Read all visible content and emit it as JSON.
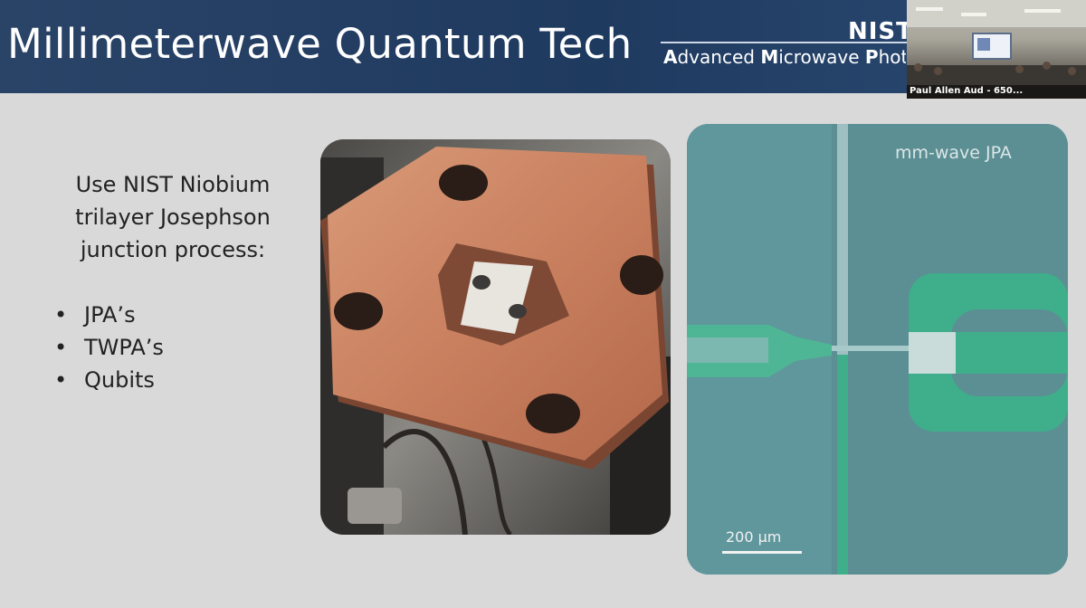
{
  "header": {
    "title": "Millimeterwave Quantum Tech",
    "logo_text": "NIST",
    "tagline_parts": [
      {
        "text": "A",
        "bold": true
      },
      {
        "text": "dvanced ",
        "bold": false
      },
      {
        "text": "M",
        "bold": true
      },
      {
        "text": "icrowave ",
        "bold": false
      },
      {
        "text": "P",
        "bold": true
      },
      {
        "text": "hoton",
        "bold": false
      }
    ]
  },
  "video": {
    "participant_label": "Paul Allen Aud - 650..."
  },
  "content": {
    "intro_lines": [
      "Use NIST Niobium",
      "trilayer Josephson",
      "junction process:"
    ],
    "bullet_symbol": "•",
    "bullets": [
      "JPA’s",
      "TWPA’s",
      "Qubits"
    ]
  },
  "micrograph": {
    "label": "mm-wave JPA",
    "scale_label": "200 µm"
  },
  "colors": {
    "header_bg": "#1f3a5f",
    "slide_bg": "#d9d9d9",
    "copper": "#c9805f",
    "micrograph_teal": "#5b8f94",
    "metal_green": "#3fae8a"
  }
}
